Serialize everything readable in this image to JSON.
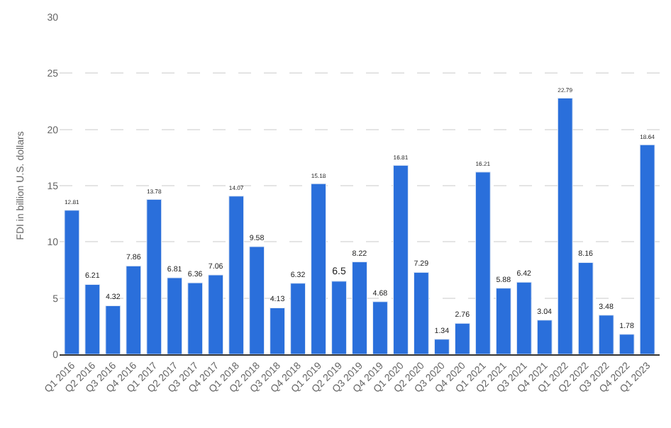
{
  "chart_data": {
    "type": "bar",
    "ylabel": "FDI in billion U.S. dollars",
    "categories": [
      "Q1 2016",
      "Q2 2016",
      "Q3 2016",
      "Q4 2016",
      "Q1 2017",
      "Q2 2017",
      "Q3 2017",
      "Q4 2017",
      "Q1 2018",
      "Q2 2018",
      "Q3 2018",
      "Q4 2018",
      "Q1 2019",
      "Q2 2019",
      "Q3 2019",
      "Q4 2019",
      "Q1 2020",
      "Q2 2020",
      "Q3 2020",
      "Q4 2020",
      "Q1 2021",
      "Q2 2021",
      "Q3 2021",
      "Q4 2021",
      "Q1 2022",
      "Q2 2022",
      "Q3 2022",
      "Q4 2022",
      "Q1 2023"
    ],
    "values": [
      12.81,
      6.21,
      4.32,
      7.86,
      13.78,
      6.81,
      6.36,
      7.06,
      14.07,
      9.58,
      4.13,
      6.32,
      15.18,
      6.5,
      8.22,
      4.68,
      16.81,
      7.29,
      1.34,
      2.76,
      16.21,
      5.88,
      6.42,
      3.04,
      22.79,
      8.16,
      3.48,
      1.78,
      18.64
    ],
    "color": "#2a6fdb",
    "ylim": [
      0,
      30
    ],
    "yticks": [
      0,
      5,
      10,
      15,
      20,
      25,
      30
    ],
    "grid": "y",
    "data_labels": true
  }
}
